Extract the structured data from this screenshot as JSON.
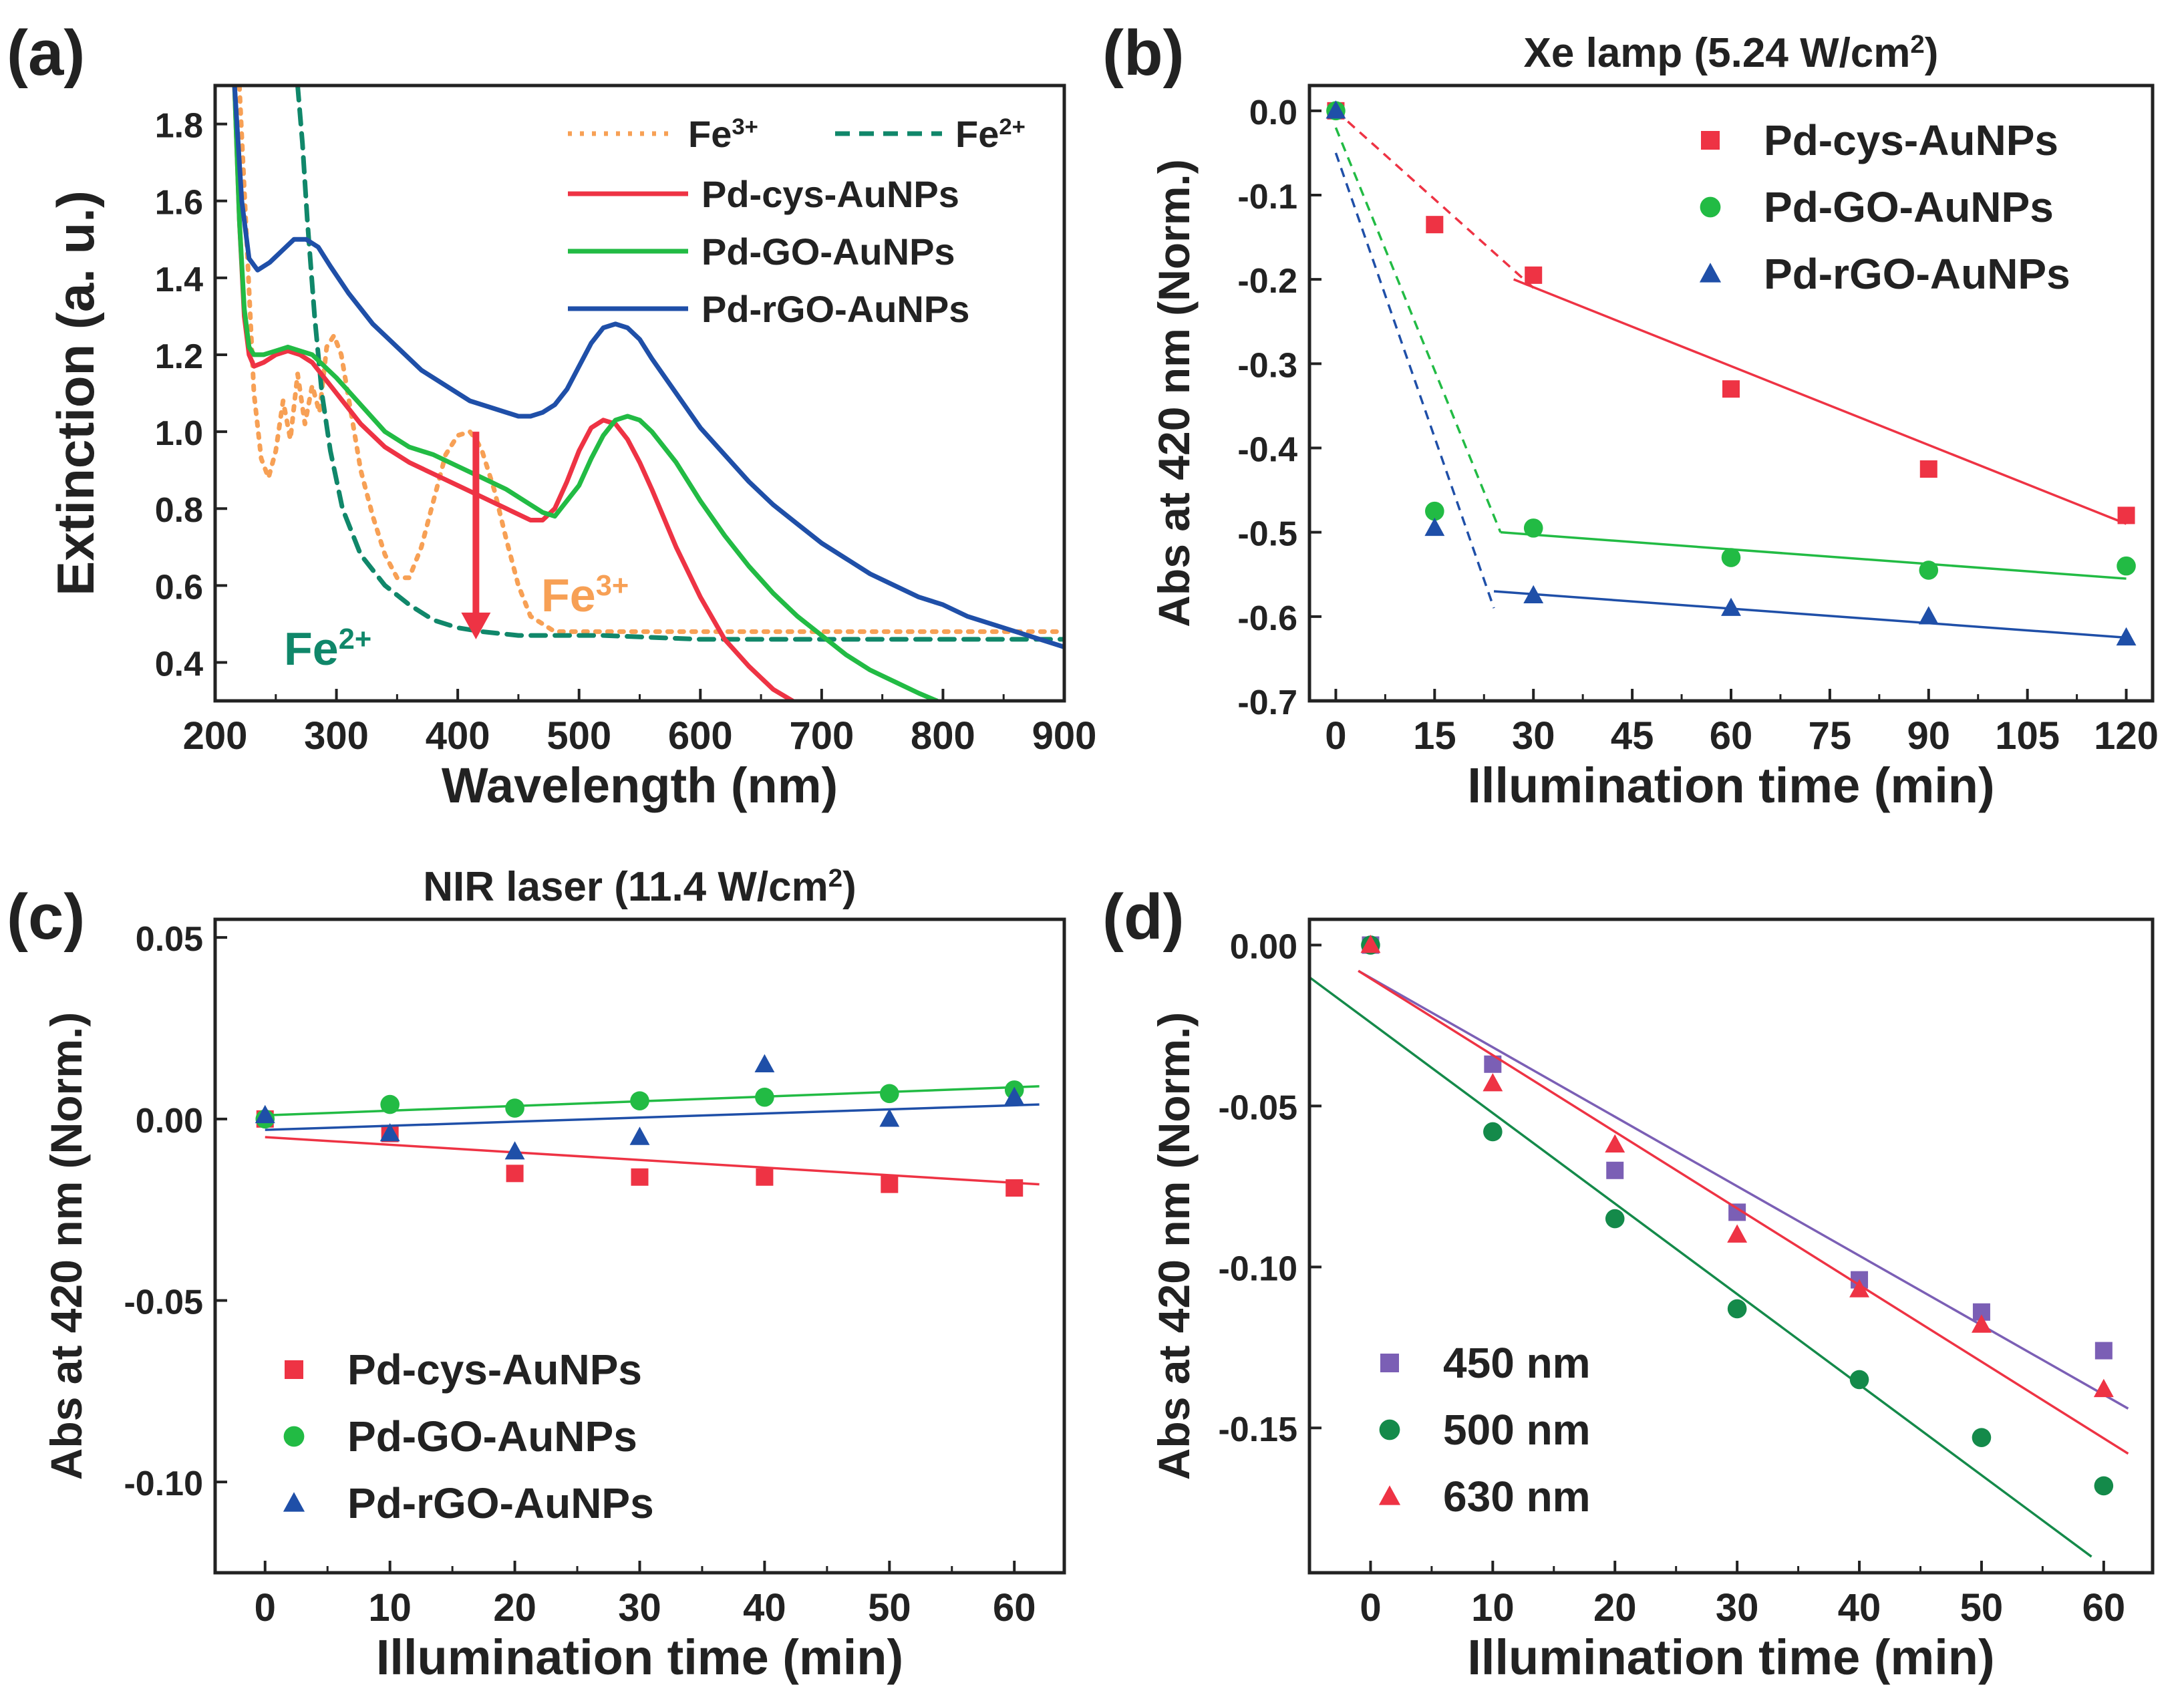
{
  "colors": {
    "red": "#ee3344",
    "green": "#22bb44",
    "blue": "#1f4fa8",
    "orange": "#f7a055",
    "teal": "#10876a",
    "purple": "#7b5fb5",
    "darkgreen": "#148a4a"
  },
  "chart_data": [
    {
      "id": "a",
      "panel_label": "(a)",
      "type": "line",
      "title": "",
      "xlabel": "Wavelength (nm)",
      "ylabel": "Extinction (a. u.)",
      "xlim": [
        200,
        900
      ],
      "ylim": [
        0.3,
        1.9
      ],
      "xticks": [
        200,
        300,
        400,
        500,
        600,
        700,
        800,
        900
      ],
      "yticks": [
        0.4,
        0.6,
        0.8,
        1.0,
        1.2,
        1.4,
        1.6,
        1.8
      ],
      "ytick_decimals": 1,
      "legend": {
        "position": "top-right",
        "entries": [
          {
            "base": "Fe",
            "sup": "3+",
            "series": "Fe3+"
          },
          {
            "base": "Fe",
            "sup": "2+",
            "series": "Fe2+"
          },
          {
            "label": "Pd-cys-AuNPs",
            "series": "Pd-cys-AuNPs"
          },
          {
            "label": "Pd-GO-AuNPs",
            "series": "Pd-GO-AuNPs"
          },
          {
            "label": "Pd-rGO-AuNPs",
            "series": "Pd-rGO-AuNPs"
          }
        ]
      },
      "annotations": [
        {
          "base": "Fe",
          "sup": "3+",
          "near": "fe3-curve-right",
          "color": "orange"
        },
        {
          "base": "Fe",
          "sup": "2+",
          "near": "fe2-curve-bottom",
          "color": "teal"
        },
        {
          "type": "arrow-down",
          "from": [
            415,
            1.0
          ],
          "to": [
            415,
            0.46
          ],
          "color": "red"
        }
      ],
      "series": [
        {
          "name": "Fe3+",
          "style": "dotted",
          "color": "orange",
          "x": [
            220,
            226,
            232,
            238,
            244,
            250,
            256,
            262,
            268,
            274,
            280,
            286,
            292,
            298,
            304,
            312,
            320,
            330,
            340,
            350,
            360,
            370,
            380,
            390,
            400,
            410,
            415,
            420,
            430,
            440,
            450,
            460,
            480,
            500,
            520,
            600,
            700,
            800,
            900
          ],
          "y": [
            1.9,
            1.5,
            1.1,
            0.93,
            0.88,
            0.95,
            1.08,
            0.98,
            1.15,
            1.02,
            1.12,
            1.05,
            1.22,
            1.25,
            1.2,
            1.05,
            0.9,
            0.78,
            0.68,
            0.62,
            0.62,
            0.7,
            0.82,
            0.94,
            0.99,
            1.0,
            0.98,
            0.95,
            0.85,
            0.72,
            0.6,
            0.52,
            0.48,
            0.48,
            0.48,
            0.48,
            0.48,
            0.48,
            0.48
          ]
        },
        {
          "name": "Fe2+",
          "style": "dashed",
          "color": "teal",
          "x": [
            268,
            272,
            276,
            282,
            288,
            295,
            305,
            320,
            340,
            360,
            380,
            400,
            420,
            450,
            480,
            500,
            520,
            600,
            700,
            800,
            900
          ],
          "y": [
            1.9,
            1.75,
            1.55,
            1.3,
            1.1,
            0.95,
            0.8,
            0.68,
            0.6,
            0.55,
            0.51,
            0.49,
            0.48,
            0.47,
            0.47,
            0.47,
            0.47,
            0.46,
            0.46,
            0.46,
            0.46
          ]
        },
        {
          "name": "Pd-cys-AuNPs",
          "style": "solid",
          "color": "red",
          "x": [
            216,
            220,
            224,
            228,
            232,
            240,
            250,
            260,
            270,
            280,
            300,
            320,
            340,
            360,
            380,
            400,
            420,
            440,
            460,
            470,
            480,
            490,
            500,
            510,
            520,
            530,
            540,
            550,
            560,
            580,
            600,
            620,
            640,
            660,
            676
          ],
          "y": [
            1.9,
            1.55,
            1.3,
            1.2,
            1.17,
            1.18,
            1.2,
            1.21,
            1.2,
            1.18,
            1.1,
            1.02,
            0.96,
            0.92,
            0.89,
            0.86,
            0.83,
            0.8,
            0.77,
            0.77,
            0.8,
            0.87,
            0.95,
            1.01,
            1.03,
            1.02,
            0.98,
            0.92,
            0.85,
            0.7,
            0.57,
            0.46,
            0.39,
            0.33,
            0.3
          ]
        },
        {
          "name": "Pd-GO-AuNPs",
          "style": "solid",
          "color": "green",
          "x": [
            216,
            220,
            224,
            228,
            232,
            240,
            250,
            260,
            270,
            280,
            300,
            320,
            340,
            360,
            380,
            400,
            420,
            440,
            460,
            470,
            480,
            500,
            510,
            520,
            530,
            540,
            550,
            560,
            580,
            600,
            620,
            640,
            660,
            680,
            700,
            720,
            740,
            760,
            780,
            795
          ],
          "y": [
            1.9,
            1.55,
            1.32,
            1.22,
            1.2,
            1.2,
            1.21,
            1.22,
            1.21,
            1.2,
            1.14,
            1.07,
            1.0,
            0.96,
            0.94,
            0.91,
            0.88,
            0.85,
            0.81,
            0.79,
            0.78,
            0.86,
            0.93,
            0.99,
            1.03,
            1.04,
            1.03,
            1.0,
            0.92,
            0.82,
            0.73,
            0.65,
            0.58,
            0.52,
            0.47,
            0.42,
            0.38,
            0.35,
            0.32,
            0.3
          ]
        },
        {
          "name": "Pd-rGO-AuNPs",
          "style": "solid",
          "color": "blue",
          "x": [
            216,
            222,
            228,
            235,
            245,
            255,
            265,
            275,
            285,
            295,
            310,
            330,
            350,
            370,
            390,
            410,
            430,
            450,
            460,
            470,
            480,
            490,
            500,
            510,
            520,
            530,
            540,
            550,
            560,
            580,
            600,
            620,
            640,
            660,
            680,
            700,
            720,
            740,
            760,
            780,
            800,
            820,
            840,
            860,
            880,
            900
          ],
          "y": [
            1.9,
            1.6,
            1.45,
            1.42,
            1.44,
            1.47,
            1.5,
            1.5,
            1.48,
            1.43,
            1.36,
            1.28,
            1.22,
            1.16,
            1.12,
            1.08,
            1.06,
            1.04,
            1.04,
            1.05,
            1.07,
            1.11,
            1.17,
            1.23,
            1.27,
            1.28,
            1.27,
            1.24,
            1.19,
            1.1,
            1.01,
            0.94,
            0.87,
            0.81,
            0.76,
            0.71,
            0.67,
            0.63,
            0.6,
            0.57,
            0.55,
            0.52,
            0.5,
            0.48,
            0.46,
            0.44
          ]
        }
      ]
    },
    {
      "id": "b",
      "panel_label": "(b)",
      "type": "scatter",
      "title": {
        "text": "Xe lamp (5.24 W/cm",
        "sup": "2",
        "end": ")"
      },
      "xlabel": "Illumination time (min)",
      "ylabel": "Abs at 420 nm (Norm.)",
      "xlim": [
        -4,
        124
      ],
      "ylim": [
        -0.7,
        0.03
      ],
      "xticks": [
        0,
        15,
        30,
        45,
        60,
        75,
        90,
        105,
        120
      ],
      "yticks": [
        0.0,
        -0.1,
        -0.2,
        -0.3,
        -0.4,
        -0.5,
        -0.6,
        -0.7
      ],
      "ytick_decimals": 1,
      "legend": {
        "position": "top-right",
        "entries": [
          {
            "label": "Pd-cys-AuNPs",
            "series": "Pd-cys-AuNPs"
          },
          {
            "label": "Pd-GO-AuNPs",
            "series": "Pd-GO-AuNPs"
          },
          {
            "label": "Pd-rGO-AuNPs",
            "series": "Pd-rGO-AuNPs"
          }
        ]
      },
      "series": [
        {
          "name": "Pd-cys-AuNPs",
          "marker": "square",
          "color": "red",
          "x": [
            0,
            15,
            30,
            60,
            90,
            120
          ],
          "y": [
            0.0,
            -0.135,
            -0.195,
            -0.33,
            -0.425,
            -0.48
          ],
          "fits": [
            {
              "x": [
                0,
                30
              ],
              "y": [
                0.0,
                -0.21
              ],
              "style": "dashed"
            },
            {
              "x": [
                27,
                120
              ],
              "y": [
                -0.2,
                -0.49
              ],
              "style": "solid"
            }
          ]
        },
        {
          "name": "Pd-GO-AuNPs",
          "marker": "circle",
          "color": "green",
          "x": [
            0,
            15,
            30,
            60,
            90,
            120
          ],
          "y": [
            0.0,
            -0.475,
            -0.495,
            -0.53,
            -0.545,
            -0.54
          ],
          "fits": [
            {
              "x": [
                0,
                25
              ],
              "y": [
                -0.02,
                -0.5
              ],
              "style": "dashed"
            },
            {
              "x": [
                25,
                120
              ],
              "y": [
                -0.5,
                -0.555
              ],
              "style": "solid"
            }
          ]
        },
        {
          "name": "Pd-rGO-AuNPs",
          "marker": "triangle",
          "color": "blue",
          "x": [
            0,
            15,
            30,
            60,
            90,
            120
          ],
          "y": [
            0.0,
            -0.495,
            -0.575,
            -0.59,
            -0.6,
            -0.625
          ],
          "fits": [
            {
              "x": [
                0,
                24
              ],
              "y": [
                -0.05,
                -0.59
              ],
              "style": "dashed"
            },
            {
              "x": [
                24,
                120
              ],
              "y": [
                -0.57,
                -0.625
              ],
              "style": "solid"
            }
          ]
        }
      ]
    },
    {
      "id": "c",
      "panel_label": "(c)",
      "type": "scatter",
      "title": {
        "text": "NIR laser (11.4 W/cm",
        "sup": "2",
        "end": ")"
      },
      "xlabel": "Illumination time (min)",
      "ylabel": "Abs at 420 nm (Norm.)",
      "xlim": [
        -4,
        64
      ],
      "ylim": [
        -0.125,
        0.055
      ],
      "xticks": [
        0,
        10,
        20,
        30,
        40,
        50,
        60
      ],
      "yticks": [
        0.05,
        0.0,
        -0.05,
        -0.1
      ],
      "ytick_decimals": 2,
      "legend": {
        "position": "bottom-left",
        "entries": [
          {
            "label": "Pd-cys-AuNPs",
            "series": "Pd-cys-AuNPs"
          },
          {
            "label": "Pd-GO-AuNPs",
            "series": "Pd-GO-AuNPs"
          },
          {
            "label": "Pd-rGO-AuNPs",
            "series": "Pd-rGO-AuNPs"
          }
        ]
      },
      "series": [
        {
          "name": "Pd-cys-AuNPs",
          "marker": "square",
          "color": "red",
          "x": [
            0,
            10,
            20,
            30,
            40,
            50,
            60
          ],
          "y": [
            0.0,
            -0.004,
            -0.015,
            -0.016,
            -0.016,
            -0.018,
            -0.019
          ],
          "fits": [
            {
              "x": [
                0,
                62
              ],
              "y": [
                -0.005,
                -0.018
              ],
              "style": "solid"
            }
          ]
        },
        {
          "name": "Pd-GO-AuNPs",
          "marker": "circle",
          "color": "green",
          "x": [
            0,
            10,
            20,
            30,
            40,
            50,
            60
          ],
          "y": [
            0.0,
            0.004,
            0.003,
            0.005,
            0.006,
            0.007,
            0.008
          ],
          "fits": [
            {
              "x": [
                0,
                62
              ],
              "y": [
                0.001,
                0.009
              ],
              "style": "solid"
            }
          ]
        },
        {
          "name": "Pd-rGO-AuNPs",
          "marker": "triangle",
          "color": "blue",
          "x": [
            0,
            10,
            20,
            30,
            40,
            50,
            60
          ],
          "y": [
            0.001,
            -0.004,
            -0.009,
            -0.005,
            0.015,
            0.0,
            0.006
          ],
          "fits": [
            {
              "x": [
                0,
                62
              ],
              "y": [
                -0.003,
                0.004
              ],
              "style": "solid"
            }
          ]
        }
      ]
    },
    {
      "id": "d",
      "panel_label": "(d)",
      "type": "scatter",
      "title": "",
      "xlabel": "Illumination time (min)",
      "ylabel": "Abs at 420 nm (Norm.)",
      "xlim": [
        -5,
        64
      ],
      "ylim": [
        -0.195,
        0.008
      ],
      "xticks": [
        0,
        10,
        20,
        30,
        40,
        50,
        60
      ],
      "yticks": [
        0.0,
        -0.05,
        -0.1,
        -0.15
      ],
      "ytick_decimals": 2,
      "legend": {
        "position": "bottom-left",
        "entries": [
          {
            "label": "450 nm",
            "series": "450 nm"
          },
          {
            "label": "500 nm",
            "series": "500 nm"
          },
          {
            "label": "630 nm",
            "series": "630 nm"
          }
        ]
      },
      "series": [
        {
          "name": "450 nm",
          "marker": "square",
          "color": "purple",
          "x": [
            0,
            10,
            20,
            30,
            40,
            50,
            60
          ],
          "y": [
            0.0,
            -0.037,
            -0.07,
            -0.083,
            -0.104,
            -0.114,
            -0.126
          ],
          "fits": [
            {
              "x": [
                -1,
                62
              ],
              "y": [
                -0.008,
                -0.144
              ],
              "style": "solid"
            }
          ]
        },
        {
          "name": "500 nm",
          "marker": "circle",
          "color": "darkgreen",
          "x": [
            0,
            10,
            20,
            30,
            40,
            50,
            60
          ],
          "y": [
            0.0,
            -0.058,
            -0.085,
            -0.113,
            -0.135,
            -0.153,
            -0.168
          ],
          "fits": [
            {
              "x": [
                -5,
                59
              ],
              "y": [
                -0.01,
                -0.19
              ],
              "style": "solid"
            }
          ]
        },
        {
          "name": "630 nm",
          "marker": "triangle",
          "color": "red",
          "x": [
            0,
            10,
            20,
            30,
            40,
            50,
            60
          ],
          "y": [
            0.0,
            -0.043,
            -0.062,
            -0.09,
            -0.107,
            -0.118,
            -0.138
          ],
          "fits": [
            {
              "x": [
                -1,
                62
              ],
              "y": [
                -0.008,
                -0.158
              ],
              "style": "solid"
            }
          ]
        }
      ]
    }
  ]
}
